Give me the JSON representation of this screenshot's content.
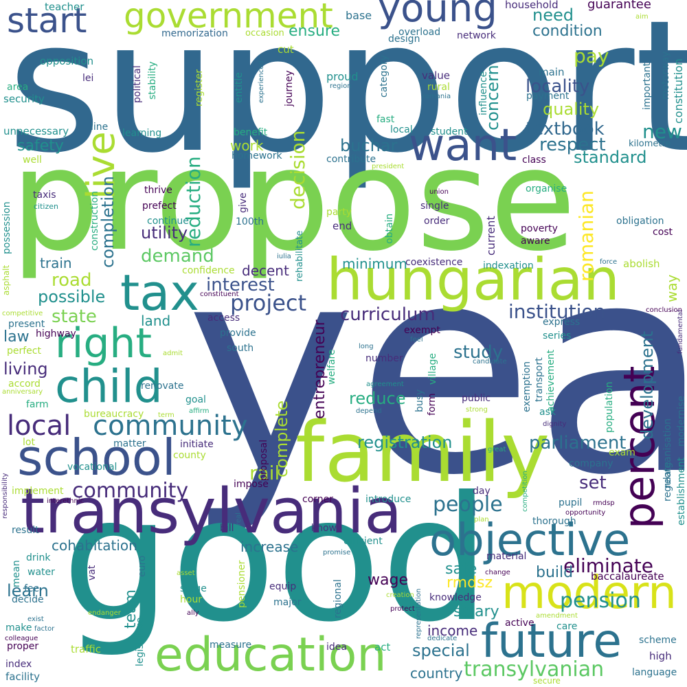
{
  "palette": {
    "c1": "#440154",
    "c2": "#472c7a",
    "c3": "#3b518b",
    "c4": "#2c718e",
    "c5": "#21908d",
    "c6": "#27ad81",
    "c7": "#5cc863",
    "c8": "#aadc32",
    "c9": "#fde725"
  },
  "words": {
    "year": "year",
    "support": "support",
    "propose": "propose",
    "good": "good",
    "family": "family",
    "transylvania": "transylvania",
    "hungarian": "hungarian",
    "education": "education",
    "future": "future",
    "objective": "objective",
    "modern": "modern",
    "school": "school",
    "child": "child",
    "tax": "tax",
    "want": "want",
    "right": "right",
    "percent": "percent",
    "government": "government",
    "young": "young",
    "start": "start",
    "live": "live",
    "local": "local",
    "community": "community",
    "community2": "community",
    "pension": "pension",
    "people": "people",
    "transylvanian": "transylvanian",
    "eliminate": "eliminate",
    "curriculum": "curriculum",
    "institution": "institution",
    "project": "project",
    "interest": "interest",
    "registration": "registration",
    "parliament": "parliament",
    "development": "development",
    "reduction": "reduction",
    "decision": "decision",
    "romanian": "romanian",
    "textbook": "textbook",
    "respect": "respect",
    "standard": "standard",
    "locality": "locality",
    "quality": "quality",
    "concern": "concern",
    "condition": "condition",
    "ensure": "ensure",
    "need": "need",
    "pay": "pay",
    "new": "new",
    "buchar": "buchar",
    "safety": "safety",
    "work": "work",
    "demand": "demand",
    "completion": "completion",
    "utility": "utility",
    "road": "road",
    "possible": "possible",
    "state": "state",
    "land": "land",
    "law": "law",
    "living": "living",
    "study": "study",
    "reduce": "reduce",
    "complete": "complete",
    "entrepreneur": "entrepreneur",
    "rail": "rail",
    "salary": "salary",
    "special": "special",
    "income": "income",
    "wage": "wage",
    "safe": "safe",
    "build": "build",
    "rmdsz": "rmdsz",
    "set": "set",
    "learn": "learn",
    "cohabitation": "cohabitation",
    "increase": "increase",
    "country": "country",
    "team": "team",
    "train": "train",
    "minimum": "minimum",
    "decent": "decent",
    "way": "way",
    "guarantee": "guarantee",
    "teacher": "teacher",
    "household": "household",
    "base": "base",
    "memorization": "memorization",
    "occasion": "occasion",
    "overload": "overload",
    "network": "network",
    "design": "design",
    "cut": "cut",
    "opposition": "opposition",
    "lei": "lei",
    "area": "area",
    "security": "security",
    "political": "political",
    "stability": "stability",
    "register": "register",
    "entitle": "entitle",
    "experienced": "experienced",
    "journey": "journey",
    "proud": "proud",
    "region": "region",
    "category": "category",
    "value": "value",
    "rural": "rural",
    "romania": "romania",
    "influence": "influence",
    "main": "main",
    "payment": "payment",
    "important": "important",
    "motorway": "motorway",
    "constitution": "constitution",
    "aim": "aim",
    "unnecessary": "unnecessary",
    "line": "line",
    "learning": "learning",
    "benefit": "benefit",
    "fast": "fast",
    "local2": "local",
    "student": "student",
    "kilometre": "kilometre",
    "well": "well",
    "homework": "homework",
    "contribute": "contribute",
    "president": "president",
    "class": "class",
    "taxis": "taxis",
    "citizen": "citizen",
    "thrive": "thrive",
    "prefect": "prefect",
    "give": "give",
    "construction": "construction",
    "continue": "continue",
    "100th": "100th",
    "rehabilitate": "rehabilitate",
    "obtain": "obtain",
    "party": "party",
    "end": "end",
    "union": "union",
    "single": "single",
    "order": "order",
    "current": "current",
    "aware": "aware",
    "poverty": "poverty",
    "organise": "organise",
    "obligation": "obligation",
    "cost": "cost",
    "possession": "possession",
    "asphalt": "asphalt",
    "confidence": "confidence",
    "iulia": "iulia",
    "coexistence": "coexistence",
    "indexation": "indexation",
    "force": "force",
    "abolish": "abolish",
    "constituent": "constituent",
    "competitive": "competitive",
    "present": "present",
    "access": "access",
    "highway": "highway",
    "provide": "provide",
    "express": "express",
    "conclusion": "conclusion",
    "fundamental": "fundamental",
    "perfect": "perfect",
    "admit": "admit",
    "south": "south",
    "exempt": "exempt",
    "feel": "feel",
    "long": "long",
    "series": "series",
    "transport": "transport",
    "welfare": "welfare",
    "village": "village",
    "candidate": "candidate",
    "number": "number",
    "accord": "accord",
    "anniversary": "anniversary",
    "farm": "farm",
    "renovate": "renovate",
    "goal": "goal",
    "agreement": "agreement",
    "busy": "busy",
    "form": "form",
    "public": "public",
    "exemption": "exemption",
    "achievement": "achievement",
    "population": "population",
    "reorganisation": "reorganisation",
    "modernise": "modernise",
    "bureaucracy": "bureaucracy",
    "term": "term",
    "affirm": "affirm",
    "depend": "depend",
    "strong": "strong",
    "ask": "ask",
    "dignity": "dignity",
    "lot": "lot",
    "matter": "matter",
    "initiate": "initiate",
    "county": "county",
    "proposal": "proposal",
    "great": "great",
    "exam": "exam",
    "company": "company",
    "regulate": "regulate",
    "establishment": "establishment",
    "responsibility": "responsibility",
    "vocational": "vocational",
    "implement": "implement",
    "impose": "impose",
    "day": "day",
    "competition": "competition",
    "corner": "corner",
    "introduce": "introduce",
    "pupil": "pupil",
    "rmdsp": "rmdsp",
    "interethnic": "interethnic",
    "opportunity": "opportunity",
    "real": "real",
    "thorough": "thorough",
    "plan": "plan",
    "result": "result",
    "bill": "bill",
    "know": "know",
    "efficient": "efficient",
    "drink": "drink",
    "promise": "promise",
    "water": "water",
    "mean": "mean",
    "vat": "vat",
    "euro": "euro",
    "material": "material",
    "fee": "fee",
    "stage": "stage",
    "pensioner": "pensioner",
    "equip": "equip",
    "change": "change",
    "baccalaureate": "baccalaureate",
    "decide": "decide",
    "hour": "hour",
    "regional": "regional",
    "creation": "creation",
    "asset": "asset",
    "major": "major",
    "knowledge": "knowledge",
    "representation": "representation",
    "exist": "exist",
    "endanger": "endanger",
    "make": "make",
    "factor": "factor",
    "ally": "ally",
    "protect": "protect",
    "amendment": "amendment",
    "colleague": "colleague",
    "active": "active",
    "care": "care",
    "dedicate": "dedicate",
    "scheme": "scheme",
    "proper": "proper",
    "traffic": "traffic",
    "legislative": "legislative",
    "measure": "measure",
    "idea": "idea",
    "act": "act",
    "high": "high",
    "index": "index",
    "facility": "facility",
    "language": "language",
    "secure": "secure"
  }
}
